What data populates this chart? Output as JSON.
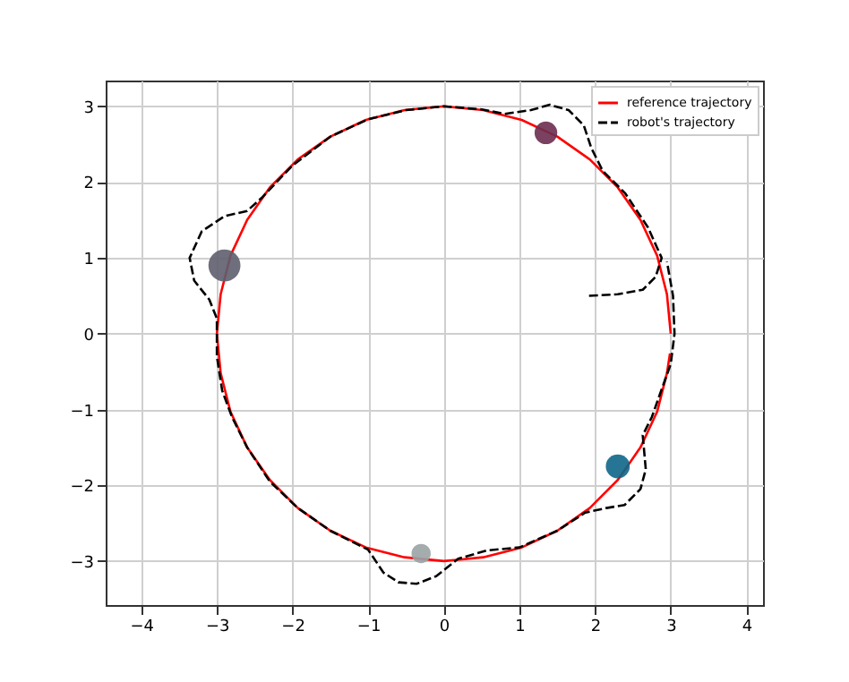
{
  "chart_data": {
    "type": "line",
    "xlim": [
      -4.47,
      4.22
    ],
    "ylim": [
      -3.58,
      3.34
    ],
    "xticks": [
      -4,
      -3,
      -2,
      -1,
      0,
      1,
      2,
      3,
      4
    ],
    "yticks": [
      -3,
      -2,
      -1,
      0,
      1,
      2,
      3
    ],
    "grid": true,
    "legend": "top right",
    "series": [
      {
        "name": "reference trajectory",
        "color": "#ff0000",
        "line_style": "solid",
        "x": [
          3,
          2.95,
          2.82,
          2.6,
          2.3,
          1.93,
          1.5,
          1.03,
          0.52,
          0,
          -0.52,
          -1.03,
          -1.5,
          -1.93,
          -2.3,
          -2.6,
          -2.82,
          -2.95,
          -3,
          -2.95,
          -2.82,
          -2.6,
          -2.3,
          -1.93,
          -1.5,
          -1.03,
          -0.52,
          0,
          0.52,
          1.03,
          1.5,
          1.93,
          2.3,
          2.6,
          2.82,
          2.95,
          2.99
        ],
        "values": [
          0,
          0.52,
          1.03,
          1.5,
          1.93,
          2.3,
          2.6,
          2.82,
          2.95,
          3,
          2.95,
          2.82,
          2.6,
          2.3,
          1.93,
          1.5,
          1.03,
          0.52,
          0,
          -0.52,
          -1.03,
          -1.5,
          -1.93,
          -2.3,
          -2.6,
          -2.82,
          -2.95,
          -3,
          -2.95,
          -2.82,
          -2.6,
          -2.3,
          -1.93,
          -1.5,
          -1.03,
          -0.52,
          -0.26
        ]
      },
      {
        "name": "robot's trajectory",
        "color": "#000000",
        "line_style": "dashed",
        "x": [
          1.92,
          2.3,
          2.63,
          2.8,
          2.88,
          2.7,
          2.4,
          2.1,
          1.95,
          1.85,
          1.65,
          1.4,
          1.15,
          0.8,
          0.5,
          0,
          -0.5,
          -1.0,
          -1.5,
          -2.0,
          -2.4,
          -2.6,
          -2.9,
          -3.2,
          -3.36,
          -3.3,
          -3.1,
          -3.0,
          -3.0,
          -2.93,
          -2.8,
          -2.6,
          -2.3,
          -1.93,
          -1.5,
          -1.0,
          -0.8,
          -0.6,
          -0.36,
          -0.1,
          0.19,
          0.57,
          1.0,
          1.5,
          1.87,
          2.15,
          2.39,
          2.6,
          2.67,
          2.63,
          2.75,
          2.86,
          3.0,
          3.05,
          3.03,
          2.95
        ],
        "values": [
          0.5,
          0.52,
          0.58,
          0.75,
          1.0,
          1.4,
          1.85,
          2.15,
          2.45,
          2.75,
          2.95,
          3.02,
          2.95,
          2.9,
          2.96,
          3.0,
          2.95,
          2.83,
          2.6,
          2.22,
          1.8,
          1.62,
          1.55,
          1.35,
          1.0,
          0.7,
          0.45,
          0.2,
          -0.3,
          -0.75,
          -1.1,
          -1.5,
          -1.95,
          -2.3,
          -2.6,
          -2.85,
          -3.15,
          -3.28,
          -3.3,
          -3.2,
          -2.97,
          -2.86,
          -2.82,
          -2.6,
          -2.36,
          -2.3,
          -2.26,
          -2.05,
          -1.79,
          -1.34,
          -1.1,
          -0.79,
          -0.4,
          0.0,
          0.5,
          0.95
        ]
      },
      {
        "type": "bubble",
        "x": [
          1.35,
          -2.9,
          2.3,
          -0.3
        ],
        "values": [
          2.65,
          0.9,
          -1.75,
          -2.9
        ],
        "sizes": [
          0.5,
          1,
          0.56,
          0.36
        ],
        "colors": [
          "#6b2d4f",
          "#5e5e6e",
          "#0f6688",
          "#9aa3a5"
        ]
      }
    ]
  }
}
